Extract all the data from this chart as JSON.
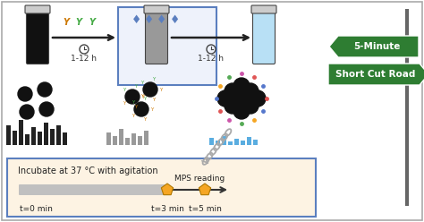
{
  "bg_color": "#ffffff",
  "sign1_text": "5-Minute",
  "sign2_text": "Short Cut Road",
  "sign_color": "#2e7d32",
  "sign_text_color": "#ffffff",
  "timeline_text": "Incubate at 37 °C with agitation",
  "mps_text": "MPS reading",
  "t0_text": "t=0 min",
  "t3_text": "t=3 min",
  "t5_text": "t=5 min",
  "time1_text": "1-12 h",
  "time2_text": "1-12 h",
  "timeline_bg": "#fdf3e3",
  "timeline_bar_color": "#c0c0c0",
  "pentagon_color": "#f5a623",
  "box_border_color": "#5b7fbf",
  "box_bg": "#eef2fb",
  "bar1_color": "#222222",
  "bar2_color": "#999999",
  "bar3_color": "#5aade0",
  "tube1_fill": "#111111",
  "tube2_fill": "#999999",
  "tube3_fill": "#b8e0f5",
  "tube_cap": "#cccccc",
  "tube_border": "#444444",
  "arrow_color": "#222222",
  "chain_color": "#aaaaaa",
  "nano_color": "#111111",
  "ab_color1": "#cc7700",
  "ab_color2": "#44aa44",
  "diamond_color": "#5b7fbf",
  "pole_color": "#666666"
}
